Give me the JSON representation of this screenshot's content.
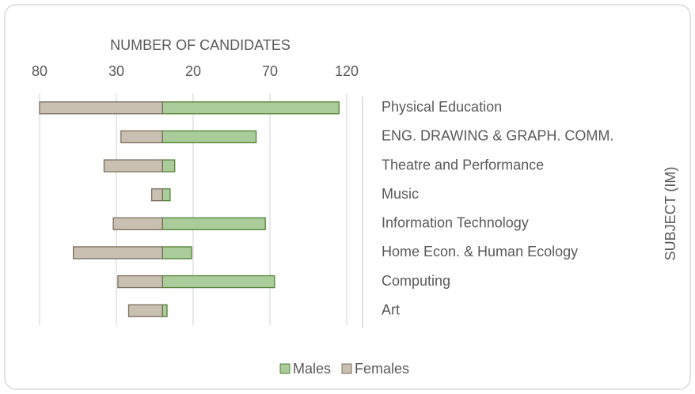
{
  "chart_data": {
    "type": "bar",
    "orientation": "horizontal",
    "stacked": true,
    "x_axis_label": "NUMBER OF CANDIDATES",
    "y_axis_label": "SUBJECT (IM)",
    "categories": [
      "Physical Education",
      "ENG. DRAWING & GRAPH. COMM.",
      "Theatre and Performance",
      "Music",
      "Information Technology",
      "Home Econ. & Human Ecology",
      "Computing",
      "Art"
    ],
    "series": [
      {
        "name": "Males",
        "color": "#a9cc9a",
        "edge": "#548235",
        "values": [
          115,
          61,
          8,
          5,
          67,
          19,
          73,
          3
        ]
      },
      {
        "name": "Females",
        "color": "#c9c0b1",
        "edge": "#7a6e5e",
        "values": [
          -80,
          -27,
          -38,
          -7,
          -32,
          -58,
          -29,
          -22
        ]
      }
    ],
    "xlim": [
      -80,
      120
    ],
    "xticks": [
      {
        "value": -80,
        "label": "80"
      },
      {
        "value": -30,
        "label": "30"
      },
      20,
      70,
      120
    ],
    "grid": true,
    "legend": "bottom"
  }
}
